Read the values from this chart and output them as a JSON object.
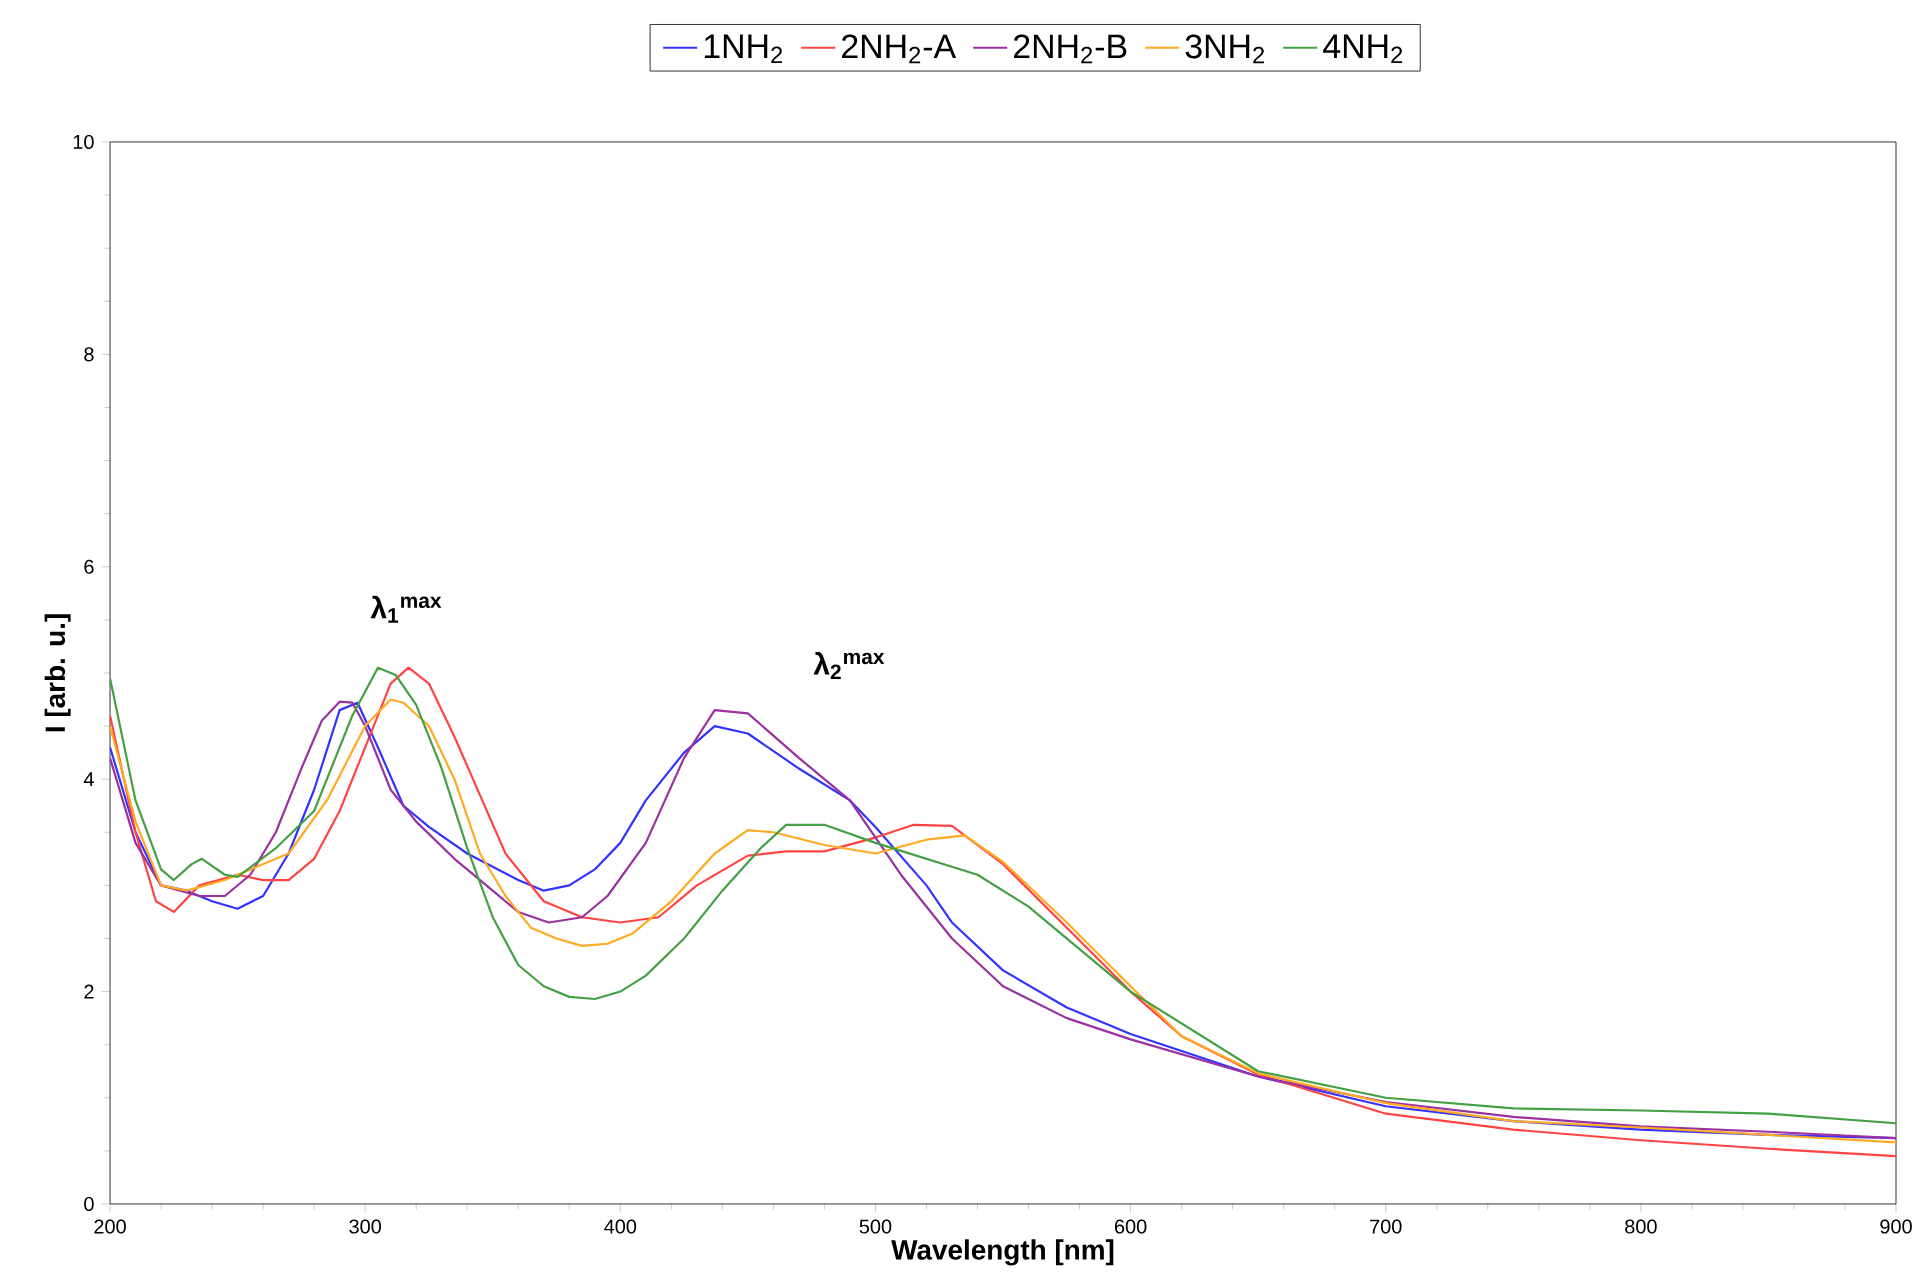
{
  "chart_data": {
    "type": "line",
    "xlabel": "Wavelength [nm]",
    "ylabel": "I [arb. u.]",
    "xlim": [
      200,
      900
    ],
    "ylim": [
      0,
      10
    ],
    "xticks": [
      200,
      300,
      400,
      500,
      600,
      700,
      800,
      900
    ],
    "yticks": [
      0,
      2,
      4,
      6,
      8,
      10
    ],
    "legend": "top",
    "annotations": [
      "λ$_{1}$$^{max}$",
      "λ$_{2}$$^{max}$"
    ],
    "series": [
      {
        "name": "1NH$_{2}$",
        "color": "#3333ff",
        "x": [
          200,
          210,
          220,
          230,
          240,
          250,
          260,
          270,
          280,
          290,
          297,
          305,
          315,
          325,
          340,
          360,
          370,
          380,
          390,
          400,
          410,
          425,
          437,
          450,
          470,
          490,
          500,
          520,
          530,
          550,
          575,
          600,
          650,
          700,
          750,
          800,
          850,
          900
        ],
        "values": [
          4.3,
          3.5,
          3.0,
          2.95,
          2.85,
          2.78,
          2.9,
          3.3,
          3.9,
          4.65,
          4.72,
          4.3,
          3.75,
          3.55,
          3.3,
          3.05,
          2.95,
          3.0,
          3.15,
          3.4,
          3.8,
          4.25,
          4.5,
          4.43,
          4.1,
          3.8,
          3.55,
          3.0,
          2.65,
          2.2,
          1.85,
          1.6,
          1.2,
          0.92,
          0.78,
          0.7,
          0.65,
          0.62
        ]
      },
      {
        "name": "2NH$_{2}$-A",
        "color": "#ff4444",
        "x": [
          200,
          210,
          218,
          225,
          235,
          250,
          260,
          270,
          280,
          290,
          300,
          310,
          317,
          325,
          335,
          345,
          355,
          370,
          385,
          400,
          415,
          430,
          450,
          465,
          480,
          500,
          515,
          530,
          550,
          575,
          600,
          620,
          650,
          700,
          750,
          800,
          850,
          900
        ],
        "values": [
          4.6,
          3.5,
          2.85,
          2.75,
          3.0,
          3.1,
          3.05,
          3.05,
          3.25,
          3.7,
          4.3,
          4.9,
          5.05,
          4.9,
          4.4,
          3.85,
          3.3,
          2.85,
          2.7,
          2.65,
          2.7,
          3.0,
          3.28,
          3.32,
          3.32,
          3.45,
          3.57,
          3.56,
          3.2,
          2.6,
          2.0,
          1.58,
          1.22,
          0.85,
          0.7,
          0.6,
          0.52,
          0.45
        ]
      },
      {
        "name": "2NH$_{2}$-B",
        "color": "#9b30a0",
        "x": [
          200,
          210,
          220,
          235,
          245,
          255,
          265,
          275,
          283,
          290,
          295,
          300,
          310,
          320,
          335,
          350,
          360,
          372,
          385,
          395,
          410,
          425,
          437,
          450,
          470,
          490,
          510,
          530,
          550,
          575,
          600,
          650,
          700,
          750,
          800,
          850,
          900
        ],
        "values": [
          4.2,
          3.4,
          3.0,
          2.9,
          2.9,
          3.1,
          3.5,
          4.1,
          4.55,
          4.73,
          4.72,
          4.5,
          3.9,
          3.6,
          3.25,
          2.95,
          2.75,
          2.65,
          2.7,
          2.9,
          3.4,
          4.2,
          4.65,
          4.62,
          4.2,
          3.8,
          3.1,
          2.5,
          2.05,
          1.75,
          1.55,
          1.2,
          0.96,
          0.82,
          0.73,
          0.68,
          0.62
        ]
      },
      {
        "name": "3NH$_{2}$",
        "color": "#ffaa22",
        "x": [
          200,
          210,
          220,
          230,
          245,
          255,
          270,
          285,
          300,
          310,
          315,
          325,
          335,
          345,
          355,
          365,
          375,
          385,
          395,
          405,
          420,
          437,
          450,
          460,
          480,
          500,
          520,
          535,
          550,
          575,
          600,
          620,
          650,
          700,
          750,
          800,
          850,
          900
        ],
        "values": [
          4.5,
          3.6,
          3.0,
          2.95,
          3.05,
          3.15,
          3.3,
          3.8,
          4.5,
          4.75,
          4.72,
          4.5,
          4.0,
          3.3,
          2.9,
          2.6,
          2.5,
          2.43,
          2.45,
          2.55,
          2.85,
          3.3,
          3.52,
          3.5,
          3.38,
          3.3,
          3.43,
          3.47,
          3.22,
          2.65,
          2.05,
          1.58,
          1.23,
          0.95,
          0.78,
          0.72,
          0.65,
          0.58
        ]
      },
      {
        "name": "4NH$_{2}$",
        "color": "#44a044",
        "x": [
          200,
          210,
          220,
          225,
          232,
          236,
          245,
          250,
          265,
          280,
          295,
          305,
          312,
          320,
          330,
          340,
          350,
          360,
          370,
          380,
          390,
          400,
          410,
          425,
          440,
          455,
          465,
          480,
          500,
          520,
          540,
          560,
          580,
          600,
          650,
          700,
          750,
          800,
          850,
          900
        ],
        "values": [
          4.95,
          3.8,
          3.15,
          3.05,
          3.2,
          3.25,
          3.1,
          3.08,
          3.35,
          3.7,
          4.6,
          5.05,
          4.98,
          4.7,
          4.1,
          3.35,
          2.7,
          2.25,
          2.05,
          1.95,
          1.93,
          2.0,
          2.15,
          2.5,
          2.95,
          3.35,
          3.57,
          3.57,
          3.4,
          3.25,
          3.1,
          2.8,
          2.4,
          2.0,
          1.25,
          1.0,
          0.9,
          0.88,
          0.85,
          0.76
        ]
      }
    ]
  }
}
